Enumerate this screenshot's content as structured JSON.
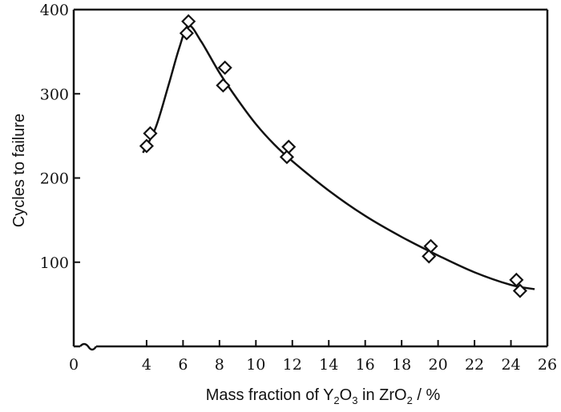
{
  "chart_data": {
    "type": "scatter",
    "title": "",
    "xlabel_parts": {
      "before": "Mass fraction of Y",
      "sub1": "2",
      "mid1": "O",
      "sub2": "3",
      "mid2": " in ZrO",
      "sub3": "2",
      "after": " / %"
    },
    "ylabel": "Cycles to failure",
    "xlim": [
      0,
      26
    ],
    "ylim": [
      0,
      400
    ],
    "xticks": [
      0,
      4,
      6,
      8,
      10,
      12,
      14,
      16,
      18,
      20,
      22,
      24,
      26
    ],
    "yticks": [
      100,
      200,
      300,
      400
    ],
    "x_break": true,
    "grid": false,
    "series": [
      {
        "marker": "diamond",
        "x": [
          4.0,
          4.2,
          6.2,
          6.3,
          8.2,
          8.3,
          11.7,
          11.8,
          19.5,
          19.6,
          24.3,
          24.5
        ],
        "y": [
          238,
          253,
          372,
          386,
          310,
          331,
          225,
          237,
          107,
          119,
          79,
          66
        ]
      }
    ],
    "fit_curve": {
      "x": [
        3.8,
        4.5,
        5.2,
        5.8,
        6.3,
        7.0,
        8.0,
        9.0,
        10.0,
        11.0,
        12.0,
        14.0,
        16.0,
        18.0,
        20.0,
        22.0,
        24.0,
        25.3
      ],
      "y": [
        230,
        260,
        310,
        355,
        381,
        362,
        325,
        293,
        264,
        240,
        220,
        185,
        155,
        130,
        108,
        88,
        73,
        68
      ]
    }
  }
}
